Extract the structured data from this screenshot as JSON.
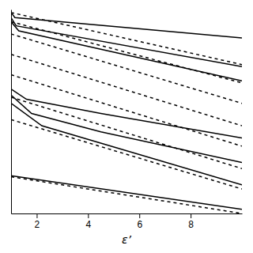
{
  "chart_data": {
    "type": "line",
    "xlabel": "ε’",
    "xlim": [
      1,
      10
    ],
    "ylim": [
      0,
      1
    ],
    "xticks": [
      2,
      4,
      6,
      8
    ],
    "tick_labels": "x",
    "series": [
      {
        "x": [
          1.0,
          1.15,
          10.0
        ],
        "values": [
          0.985,
          0.96,
          0.86
        ],
        "line_style": "solid",
        "color": "black"
      },
      {
        "x": [
          1.0,
          1.2,
          10.0
        ],
        "values": [
          0.96,
          0.92,
          0.72
        ],
        "line_style": "solid",
        "color": "black"
      },
      {
        "x": [
          1.0,
          1.3,
          10.0
        ],
        "values": [
          0.94,
          0.895,
          0.65
        ],
        "line_style": "solid",
        "color": "black"
      },
      {
        "x": [
          1.0,
          1.6,
          4.5,
          10.0
        ],
        "values": [
          0.61,
          0.56,
          0.49,
          0.37
        ],
        "line_style": "solid",
        "color": "black"
      },
      {
        "x": [
          1.0,
          1.8,
          4.5,
          10.0
        ],
        "values": [
          0.58,
          0.49,
          0.4,
          0.25
        ],
        "line_style": "solid",
        "color": "black"
      },
      {
        "x": [
          1.0,
          2.2,
          10.0
        ],
        "values": [
          0.54,
          0.43,
          0.14
        ],
        "line_style": "solid",
        "color": "black"
      },
      {
        "x": [
          1.0,
          10.0
        ],
        "values": [
          0.185,
          0.02
        ],
        "line_style": "solid",
        "color": "black"
      },
      {
        "x": [
          1.0,
          10.0
        ],
        "values": [
          0.985,
          0.73
        ],
        "line_style": "dashed",
        "color": "black"
      },
      {
        "x": [
          1.0,
          10.0
        ],
        "values": [
          0.94,
          0.64
        ],
        "line_style": "dashed",
        "color": "black"
      },
      {
        "x": [
          1.0,
          10.0
        ],
        "values": [
          0.88,
          0.54
        ],
        "line_style": "dashed",
        "color": "black"
      },
      {
        "x": [
          1.0,
          10.0
        ],
        "values": [
          0.78,
          0.43
        ],
        "line_style": "dashed",
        "color": "black"
      },
      {
        "x": [
          1.0,
          10.0
        ],
        "values": [
          0.68,
          0.33
        ],
        "line_style": "dashed",
        "color": "black"
      },
      {
        "x": [
          1.0,
          10.0
        ],
        "values": [
          0.57,
          0.22
        ],
        "line_style": "dashed",
        "color": "black"
      },
      {
        "x": [
          1.0,
          10.0
        ],
        "values": [
          0.46,
          0.12
        ],
        "line_style": "dashed",
        "color": "black"
      },
      {
        "x": [
          1.0,
          10.0
        ],
        "values": [
          0.18,
          0.0
        ],
        "line_style": "dashed",
        "color": "black"
      }
    ]
  }
}
